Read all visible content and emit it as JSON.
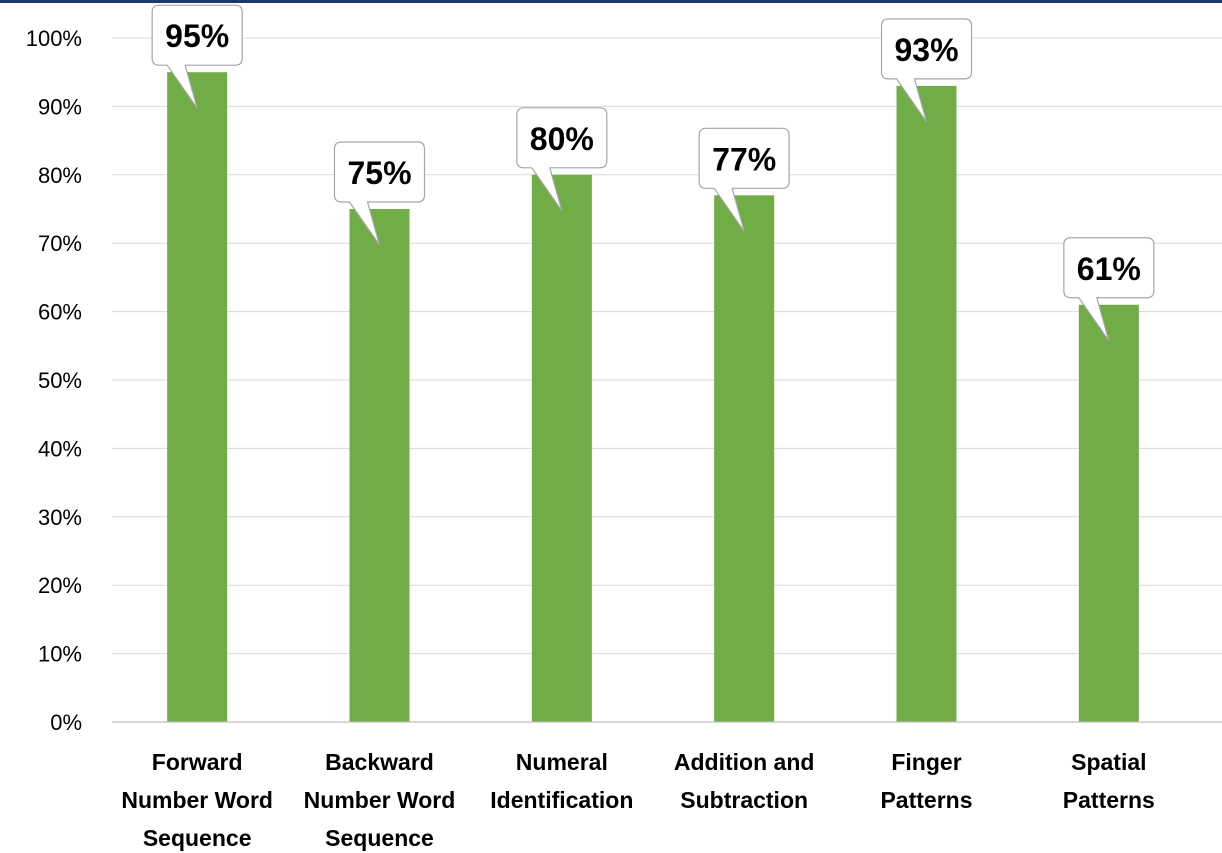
{
  "chart_data": {
    "type": "bar",
    "categories": [
      [
        "Forward",
        "Number Word",
        "Sequence"
      ],
      [
        "Backward",
        "Number Word",
        "Sequence"
      ],
      [
        "Numeral",
        "Identification"
      ],
      [
        "Addition and",
        "Subtraction"
      ],
      [
        "Finger",
        "Patterns"
      ],
      [
        "Spatial",
        "Patterns"
      ]
    ],
    "values": [
      95,
      75,
      80,
      77,
      93,
      61
    ],
    "data_labels": [
      "95%",
      "75%",
      "80%",
      "77%",
      "93%",
      "61%"
    ],
    "y_tick_labels": [
      "0%",
      "10%",
      "20%",
      "30%",
      "40%",
      "50%",
      "60%",
      "70%",
      "80%",
      "90%",
      "100%"
    ],
    "ylim": [
      0,
      100
    ],
    "grid": true,
    "bar_color": "#70ad47",
    "accent_color": "#1f3864"
  }
}
